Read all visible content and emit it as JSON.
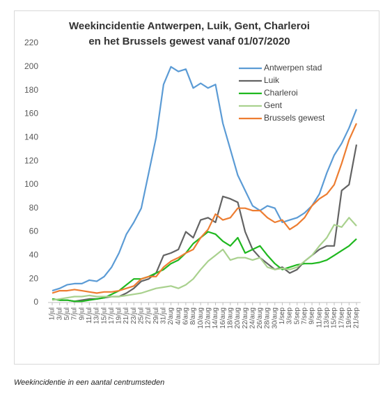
{
  "chart_data": {
    "type": "line",
    "title": [
      "Weekincidentie Antwerpen, Luik, Gent, Charleroi",
      "en het Brussels gewest vanaf 01/07/2020"
    ],
    "categories": [
      "1/jul",
      "3/jul",
      "5/jul",
      "7/jul",
      "9/jul",
      "11/jul",
      "13/jul",
      "15/jul",
      "17/jul",
      "19/jul",
      "21/jul",
      "23/jul",
      "25/jul",
      "27/jul",
      "29/jul",
      "31/jul",
      "2/aug",
      "4/aug",
      "6/aug",
      "8/aug",
      "10/aug",
      "12/aug",
      "14/aug",
      "16/aug",
      "18/aug",
      "20/aug",
      "22/aug",
      "24/aug",
      "26/aug",
      "28/aug",
      "30/aug",
      "1/sep",
      "3/sep",
      "5/sep",
      "7/sep",
      "9/sep",
      "11/sep",
      "13/sep",
      "15/sep",
      "17/sep",
      "19/sep",
      "21/sep"
    ],
    "series": [
      {
        "name": "Antwerpen stad",
        "color": "#5b9bd5",
        "values": [
          10,
          12,
          15,
          16,
          16,
          19,
          18,
          22,
          30,
          42,
          58,
          68,
          80,
          110,
          140,
          185,
          200,
          196,
          198,
          182,
          186,
          182,
          185,
          152,
          130,
          108,
          95,
          82,
          78,
          82,
          80,
          68,
          70,
          72,
          76,
          82,
          92,
          110,
          125,
          135,
          148,
          164
        ]
      },
      {
        "name": "Luik",
        "color": "#636363",
        "values": [
          3,
          2,
          2,
          1,
          2,
          3,
          3,
          4,
          5,
          5,
          8,
          12,
          18,
          20,
          25,
          40,
          42,
          45,
          60,
          55,
          70,
          72,
          68,
          90,
          88,
          85,
          60,
          45,
          38,
          33,
          28,
          30,
          25,
          28,
          35,
          40,
          45,
          48,
          48,
          95,
          100,
          134
        ]
      },
      {
        "name": "Charleroi",
        "color": "#1fb81f",
        "values": [
          3,
          2,
          2,
          1,
          1,
          2,
          3,
          4,
          7,
          10,
          15,
          20,
          20,
          22,
          25,
          28,
          33,
          36,
          42,
          50,
          55,
          60,
          58,
          52,
          48,
          55,
          42,
          45,
          48,
          40,
          33,
          28,
          30,
          32,
          33,
          33,
          34,
          36,
          40,
          44,
          48,
          54
        ]
      },
      {
        "name": "Gent",
        "color": "#a9d18e",
        "values": [
          2,
          3,
          4,
          5,
          5,
          6,
          5,
          5,
          5,
          5,
          6,
          7,
          8,
          10,
          12,
          13,
          14,
          12,
          15,
          20,
          28,
          35,
          40,
          45,
          36,
          38,
          38,
          36,
          38,
          30,
          28,
          29,
          28,
          30,
          35,
          40,
          48,
          55,
          66,
          64,
          72,
          65
        ]
      },
      {
        "name": "Brussels gewest",
        "color": "#ed7d31",
        "values": [
          8,
          10,
          10,
          11,
          10,
          9,
          8,
          9,
          9,
          10,
          12,
          14,
          20,
          22,
          22,
          30,
          35,
          38,
          42,
          45,
          55,
          62,
          75,
          70,
          72,
          80,
          80,
          78,
          78,
          72,
          68,
          70,
          62,
          66,
          72,
          82,
          88,
          92,
          100,
          118,
          138,
          152
        ]
      }
    ],
    "ylim": [
      0,
      220
    ],
    "yticks": [
      0,
      20,
      40,
      60,
      80,
      100,
      120,
      140,
      160,
      180,
      200,
      220
    ],
    "grid": false,
    "legend": "upper right"
  },
  "caption": "Weekincidentie in een aantal centrumsteden"
}
